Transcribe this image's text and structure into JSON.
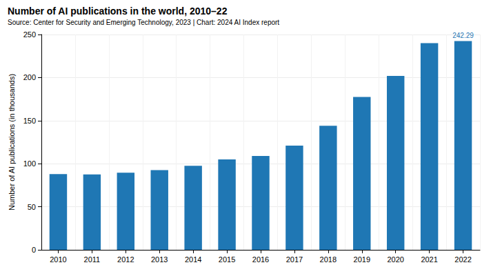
{
  "chart_data": {
    "type": "bar",
    "title": "Number of AI publications in the world, 2010–22",
    "subtitle": "Source: Center for Security and Emerging Technology, 2023 | Chart: 2024 AI Index report",
    "y_label": "Number of AI publications (in thousands)",
    "categories": [
      "2010",
      "2011",
      "2012",
      "2013",
      "2014",
      "2015",
      "2016",
      "2017",
      "2018",
      "2019",
      "2020",
      "2021",
      "2022"
    ],
    "values": [
      88,
      87.5,
      89.5,
      92.5,
      97.5,
      105,
      109,
      121,
      144,
      177.5,
      202,
      240,
      242.29
    ],
    "color": "#1f77b4",
    "ylim": [
      0,
      250
    ],
    "yticks": [
      0,
      50,
      100,
      150,
      200,
      250
    ],
    "grid": true,
    "annotations": [
      {
        "category": "2022",
        "text": "242.29"
      }
    ]
  }
}
